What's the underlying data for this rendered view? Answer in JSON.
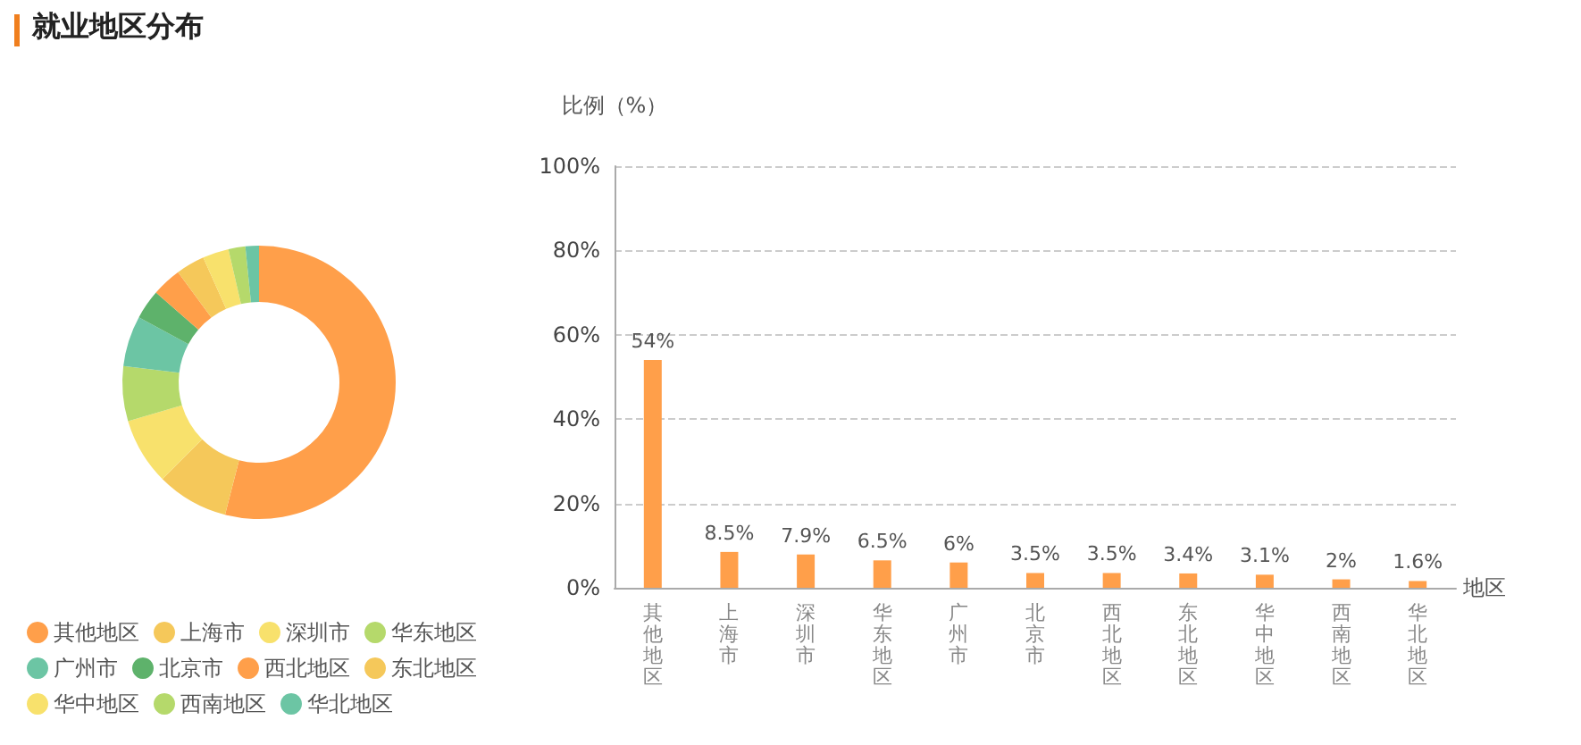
{
  "chart_data": [
    {
      "type": "donut",
      "title": "就业地区分布",
      "categories": [
        "其他地区",
        "上海市",
        "深圳市",
        "华东地区",
        "广州市",
        "北京市",
        "西北地区",
        "东北地区",
        "华中地区",
        "西南地区",
        "华北地区"
      ],
      "values": [
        54,
        8.5,
        7.9,
        6.5,
        6,
        3.5,
        3.5,
        3.4,
        3.1,
        2,
        1.6
      ],
      "colors": [
        "#ff9f4a",
        "#f5c85a",
        "#f8e16c",
        "#b5d96b",
        "#6cc5a4",
        "#5eb26b",
        "#ff9f4a",
        "#f5c85a",
        "#f8e16c",
        "#b5d96b",
        "#6cc5a4"
      ],
      "legend": "bottom left"
    },
    {
      "type": "bar",
      "ylabel": "比例（%）",
      "xlabel": "地区",
      "categories": [
        "其他地区",
        "上海市",
        "深圳市",
        "华东地区",
        "广州市",
        "北京市",
        "西北地区",
        "东北地区",
        "华中地区",
        "西南地区",
        "华北地区"
      ],
      "values": [
        54,
        8.5,
        7.9,
        6.5,
        6,
        3.5,
        3.5,
        3.4,
        3.1,
        2,
        1.6
      ],
      "value_labels": [
        "54%",
        "8.5%",
        "7.9%",
        "6.5%",
        "6%",
        "3.5%",
        "3.5%",
        "3.4%",
        "3.1%",
        "2%",
        "1.6%"
      ],
      "color": "#ff9f4a",
      "ylim": [
        0,
        100
      ],
      "yticks": [
        {
          "value": 0,
          "label": "0%"
        },
        {
          "value": 20,
          "label": "20%"
        },
        {
          "value": 40,
          "label": "40%"
        },
        {
          "value": 60,
          "label": "60%"
        },
        {
          "value": 80,
          "label": "80%"
        },
        {
          "value": 100,
          "label": "100%"
        }
      ],
      "grid": "y"
    }
  ]
}
